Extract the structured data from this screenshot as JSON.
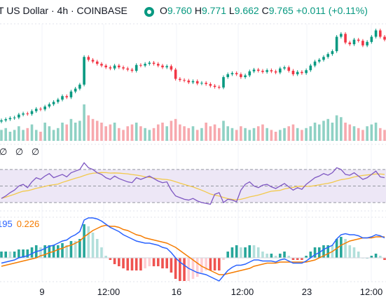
{
  "header": {
    "title": "T US Dollar · 4h · COINBASE",
    "open_label": "O",
    "open": "9.760",
    "high_label": "H",
    "high": "9.771",
    "low_label": "L",
    "low": "9.662",
    "close_label": "C",
    "close": "9.765",
    "change": "+0.011 (+0.11%)",
    "status_icon": "eye-icon"
  },
  "rsi_legend": "∅ ∅ ∅",
  "macd_legend": {
    "value_a": "195",
    "value_b": "0.226"
  },
  "colors": {
    "up": "#089981",
    "down": "#f23645",
    "up_volume": "#8fd1c4",
    "down_volume": "#f7a9ae",
    "rsi_line": "#7e57c2",
    "rsi_ma": "#f2c94c",
    "rsi_band": "#ede7f6",
    "macd_line": "#2962ff",
    "signal_line": "#f57c00",
    "hist_up_strong": "#26a69a",
    "hist_up_weak": "#b2dfdb",
    "hist_down_strong": "#ef5350",
    "hist_down_weak": "#ffcdd2"
  },
  "chart_data": {
    "type": "candlestick",
    "x_ticks": [
      "9",
      "12:00",
      "16",
      "12:00",
      "23",
      "12:00"
    ],
    "price_series": [
      9.1,
      9.12,
      9.14,
      9.15,
      9.2,
      9.22,
      9.21,
      9.26,
      9.3,
      9.29,
      9.34,
      9.38,
      9.42,
      9.46,
      9.52,
      9.5,
      9.6,
      9.65,
      9.72,
      10.2,
      10.15,
      10.12,
      10.08,
      10.05,
      10.02,
      10.0,
      10.05,
      10.02,
      10.0,
      9.98,
      9.96,
      10.06,
      10.05,
      10.08,
      10.1,
      10.08,
      10.05,
      10.02,
      10.04,
      9.98,
      9.82,
      9.8,
      9.79,
      9.76,
      9.78,
      9.74,
      9.75,
      9.73,
      9.7,
      9.68,
      9.67,
      9.85,
      9.9,
      9.92,
      9.9,
      9.85,
      9.88,
      9.95,
      9.98,
      9.96,
      9.94,
      9.97,
      9.95,
      9.93,
      10.0,
      10.02,
      9.96,
      9.9,
      9.94,
      9.92,
      9.97,
      10.05,
      10.12,
      10.15,
      10.2,
      10.25,
      10.3,
      10.55,
      10.6,
      10.45,
      10.42,
      10.5,
      10.48,
      10.4,
      10.46,
      10.55,
      10.66,
      10.55,
      10.5
    ],
    "volume": [
      0.3,
      0.35,
      0.25,
      0.3,
      0.4,
      0.3,
      0.35,
      0.45,
      0.3,
      0.25,
      0.5,
      0.4,
      0.3,
      0.35,
      0.5,
      0.45,
      0.6,
      0.5,
      0.55,
      1.0,
      0.7,
      0.6,
      0.55,
      0.5,
      0.4,
      0.45,
      0.5,
      0.35,
      0.3,
      0.4,
      0.45,
      0.5,
      0.4,
      0.35,
      0.3,
      0.35,
      0.45,
      0.5,
      0.4,
      0.55,
      0.6,
      0.45,
      0.4,
      0.35,
      0.4,
      0.3,
      0.35,
      0.5,
      0.4,
      0.45,
      0.35,
      0.55,
      0.4,
      0.35,
      0.3,
      0.4,
      0.35,
      0.3,
      0.35,
      0.4,
      0.45,
      0.35,
      0.3,
      0.25,
      0.3,
      0.35,
      0.4,
      0.45,
      0.35,
      0.3,
      0.35,
      0.4,
      0.5,
      0.45,
      0.55,
      0.6,
      0.5,
      0.7,
      0.65,
      0.5,
      0.45,
      0.4,
      0.35,
      0.3,
      0.4,
      0.45,
      0.5,
      0.35,
      0.3
    ],
    "rsi": [
      35,
      38,
      42,
      45,
      50,
      52,
      48,
      55,
      60,
      58,
      62,
      65,
      60,
      62,
      64,
      61,
      66,
      68,
      70,
      78,
      72,
      70,
      66,
      64,
      60,
      58,
      62,
      59,
      57,
      55,
      54,
      60,
      58,
      60,
      62,
      59,
      56,
      54,
      55,
      45,
      38,
      36,
      34,
      33,
      35,
      32,
      30,
      29,
      28,
      40,
      42,
      30,
      34,
      33,
      31,
      45,
      52,
      55,
      50,
      48,
      51,
      52,
      49,
      47,
      50,
      53,
      49,
      45,
      48,
      46,
      52,
      56,
      60,
      62,
      65,
      63,
      66,
      72,
      70,
      64,
      63,
      66,
      62,
      58,
      60,
      64,
      68,
      61,
      60
    ],
    "macd": [
      -0.05,
      -0.04,
      -0.03,
      -0.02,
      0.0,
      0.01,
      0.02,
      0.04,
      0.06,
      0.07,
      0.09,
      0.11,
      0.12,
      0.14,
      0.16,
      0.17,
      0.2,
      0.22,
      0.25,
      0.36,
      0.38,
      0.38,
      0.37,
      0.35,
      0.32,
      0.29,
      0.27,
      0.25,
      0.22,
      0.2,
      0.18,
      0.16,
      0.15,
      0.14,
      0.14,
      0.13,
      0.12,
      0.1,
      0.09,
      0.05,
      0.0,
      -0.04,
      -0.07,
      -0.1,
      -0.12,
      -0.14,
      -0.15,
      -0.16,
      -0.18,
      -0.2,
      -0.22,
      -0.17,
      -0.12,
      -0.09,
      -0.07,
      -0.07,
      -0.06,
      -0.04,
      -0.02,
      -0.02,
      -0.03,
      -0.03,
      -0.03,
      -0.04,
      -0.02,
      -0.01,
      -0.03,
      -0.05,
      -0.05,
      -0.05,
      -0.03,
      0.0,
      0.03,
      0.05,
      0.08,
      0.1,
      0.12,
      0.18,
      0.22,
      0.23,
      0.22,
      0.22,
      0.21,
      0.19,
      0.19,
      0.2,
      0.22,
      0.21,
      0.19
    ],
    "signal": [
      -0.08,
      -0.07,
      -0.06,
      -0.05,
      -0.04,
      -0.03,
      -0.02,
      -0.01,
      0.0,
      0.02,
      0.03,
      0.05,
      0.06,
      0.08,
      0.09,
      0.11,
      0.12,
      0.14,
      0.16,
      0.2,
      0.23,
      0.26,
      0.28,
      0.3,
      0.31,
      0.3,
      0.3,
      0.29,
      0.27,
      0.26,
      0.24,
      0.22,
      0.21,
      0.19,
      0.18,
      0.17,
      0.16,
      0.15,
      0.14,
      0.12,
      0.1,
      0.07,
      0.04,
      0.01,
      -0.02,
      -0.05,
      -0.08,
      -0.1,
      -0.12,
      -0.14,
      -0.16,
      -0.16,
      -0.15,
      -0.14,
      -0.13,
      -0.12,
      -0.11,
      -0.1,
      -0.08,
      -0.07,
      -0.06,
      -0.05,
      -0.05,
      -0.05,
      -0.04,
      -0.04,
      -0.04,
      -0.04,
      -0.04,
      -0.04,
      -0.04,
      -0.03,
      -0.02,
      0.0,
      0.02,
      0.04,
      0.06,
      0.09,
      0.12,
      0.14,
      0.16,
      0.17,
      0.18,
      0.19,
      0.19,
      0.19,
      0.2,
      0.2,
      0.2
    ],
    "rsi_levels": [
      70,
      50,
      30
    ]
  }
}
